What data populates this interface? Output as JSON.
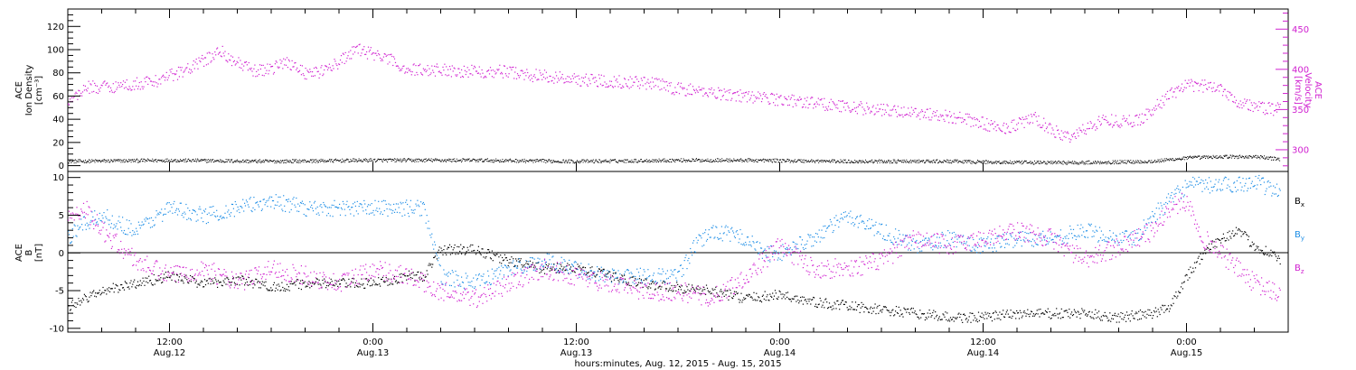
{
  "colors": {
    "black": "#000000",
    "magenta": "#d020d0",
    "blue": "#1e8ee6",
    "frame": "#000000"
  },
  "x_axis": {
    "range_hours": [
      0,
      72
    ],
    "comment_units": "hours since Aug. 12 2015 06:00",
    "title": "hours:minutes, Aug. 12, 2015 - Aug. 15, 2015",
    "ticks": [
      {
        "time": "12:00",
        "date": "Aug.12"
      },
      {
        "time": "0:00",
        "date": "Aug.13"
      },
      {
        "time": "12:00",
        "date": "Aug.13"
      },
      {
        "time": "0:00",
        "date": "Aug.14"
      },
      {
        "time": "12:00",
        "date": "Aug.14"
      },
      {
        "time": "0:00",
        "date": "Aug.15"
      }
    ]
  },
  "chart_data": [
    {
      "type": "scatter",
      "panel": "top",
      "left_axis": {
        "label_lines": [
          "ACE",
          "Ion Density",
          "[cm⁻³]"
        ],
        "ylim": [
          -5,
          135
        ],
        "ticks": [
          0,
          20,
          40,
          60,
          80,
          100,
          120
        ]
      },
      "right_axis": {
        "label_lines": [
          "ACE",
          "Velocity",
          "[km/s]"
        ],
        "ylim": [
          273,
          475
        ],
        "ticks": [
          300,
          350,
          400,
          450
        ]
      },
      "series": [
        {
          "key": "density",
          "color": "magenta_unused",
          "axis": "left",
          "anchors": [
            [
              0,
              4
            ],
            [
              6,
              5
            ],
            [
              12,
              4
            ],
            [
              18,
              5
            ],
            [
              24,
              5
            ],
            [
              30,
              4
            ],
            [
              36,
              5
            ],
            [
              40,
              5
            ],
            [
              46,
              4
            ],
            [
              52,
              4
            ],
            [
              56,
              3
            ],
            [
              60,
              3
            ],
            [
              64,
              4
            ],
            [
              66,
              7
            ],
            [
              68,
              8
            ],
            [
              70,
              8
            ],
            [
              71.5,
              6
            ]
          ]
        },
        {
          "key": "velocity",
          "axis": "right",
          "anchors": [
            [
              0,
              358
            ],
            [
              1,
              378
            ],
            [
              3,
              380
            ],
            [
              5,
              385
            ],
            [
              7,
              400
            ],
            [
              9,
              423
            ],
            [
              10,
              408
            ],
            [
              11,
              398
            ],
            [
              12,
              402
            ],
            [
              13,
              410
            ],
            [
              14,
              396
            ],
            [
              15,
              398
            ],
            [
              16,
              410
            ],
            [
              17,
              425
            ],
            [
              18,
              420
            ],
            [
              19,
              412
            ],
            [
              20,
              400
            ],
            [
              22,
              400
            ],
            [
              24,
              398
            ],
            [
              26,
              398
            ],
            [
              27,
              394
            ],
            [
              28,
              392
            ],
            [
              30,
              388
            ],
            [
              32,
              386
            ],
            [
              34,
              384
            ],
            [
              35,
              381
            ],
            [
              36,
              376
            ],
            [
              38,
              372
            ],
            [
              40,
              367
            ],
            [
              42,
              363
            ],
            [
              44,
              359
            ],
            [
              46,
              354
            ],
            [
              48,
              350
            ],
            [
              50,
              347
            ],
            [
              52,
              342
            ],
            [
              53,
              338
            ],
            [
              54,
              333
            ],
            [
              55,
              327
            ],
            [
              56,
              332
            ],
            [
              57,
              340
            ],
            [
              58,
              325
            ],
            [
              59,
              316
            ],
            [
              60,
              326
            ],
            [
              61,
              338
            ],
            [
              62,
              336
            ],
            [
              63,
              336
            ],
            [
              64,
              350
            ],
            [
              65,
              370
            ],
            [
              66,
              380
            ],
            [
              67,
              380
            ],
            [
              68,
              378
            ],
            [
              69,
              360
            ],
            [
              70,
              354
            ],
            [
              71,
              351
            ],
            [
              71.5,
              352
            ]
          ]
        }
      ]
    },
    {
      "type": "scatter",
      "panel": "bottom",
      "left_axis": {
        "label_lines": [
          "ACE",
          "B",
          "[nT]"
        ],
        "ylim": [
          -10.5,
          10.8
        ],
        "ticks": [
          -10,
          -5,
          0,
          5,
          10
        ]
      },
      "zero_line": 0,
      "series": [
        {
          "key": "Bx",
          "name": "Bx",
          "anchors": [
            [
              0,
              -7
            ],
            [
              2,
              -5
            ],
            [
              4,
              -4
            ],
            [
              6,
              -3
            ],
            [
              8,
              -4
            ],
            [
              10,
              -3.5
            ],
            [
              12,
              -4.5
            ],
            [
              14,
              -4
            ],
            [
              16,
              -4
            ],
            [
              18,
              -4
            ],
            [
              20,
              -3
            ],
            [
              21,
              -3
            ],
            [
              22,
              0.5
            ],
            [
              24,
              0.5
            ],
            [
              26,
              -1
            ],
            [
              28,
              -2
            ],
            [
              30,
              -2
            ],
            [
              32,
              -3
            ],
            [
              34,
              -4
            ],
            [
              36,
              -4.5
            ],
            [
              38,
              -5
            ],
            [
              40,
              -6
            ],
            [
              42,
              -5.5
            ],
            [
              44,
              -6.5
            ],
            [
              46,
              -7
            ],
            [
              48,
              -7.5
            ],
            [
              50,
              -8
            ],
            [
              52,
              -8.5
            ],
            [
              54,
              -8.5
            ],
            [
              56,
              -8
            ],
            [
              58,
              -8
            ],
            [
              60,
              -8
            ],
            [
              62,
              -8.5
            ],
            [
              64,
              -8
            ],
            [
              65,
              -7
            ],
            [
              66,
              -3
            ],
            [
              67,
              0
            ],
            [
              68,
              2
            ],
            [
              69,
              3
            ],
            [
              70,
              1
            ],
            [
              71,
              0
            ],
            [
              71.5,
              -1
            ]
          ]
        },
        {
          "key": "By",
          "name": "By",
          "anchors": [
            [
              0,
              2
            ],
            [
              1,
              4
            ],
            [
              2,
              5
            ],
            [
              4,
              3
            ],
            [
              6,
              6
            ],
            [
              8,
              5
            ],
            [
              10,
              6
            ],
            [
              12,
              7
            ],
            [
              14,
              6
            ],
            [
              16,
              6
            ],
            [
              18,
              6
            ],
            [
              20,
              6
            ],
            [
              21,
              6
            ],
            [
              22,
              -3
            ],
            [
              24,
              -4
            ],
            [
              26,
              -2
            ],
            [
              28,
              -1
            ],
            [
              30,
              -2
            ],
            [
              32,
              -3
            ],
            [
              34,
              -3
            ],
            [
              36,
              -3
            ],
            [
              37,
              1
            ],
            [
              38,
              3
            ],
            [
              40,
              2
            ],
            [
              41,
              0
            ],
            [
              42,
              0
            ],
            [
              44,
              2
            ],
            [
              46,
              5
            ],
            [
              48,
              3
            ],
            [
              50,
              1
            ],
            [
              52,
              2
            ],
            [
              54,
              1
            ],
            [
              56,
              2
            ],
            [
              58,
              2
            ],
            [
              60,
              3
            ],
            [
              62,
              2
            ],
            [
              63,
              2
            ],
            [
              64,
              5
            ],
            [
              65,
              7
            ],
            [
              66,
              9
            ],
            [
              68,
              9
            ],
            [
              70,
              9.5
            ],
            [
              71.5,
              8
            ]
          ]
        },
        {
          "key": "Bz",
          "name": "Bz",
          "anchors": [
            [
              0,
              5
            ],
            [
              1,
              6
            ],
            [
              2,
              3
            ],
            [
              4,
              -1
            ],
            [
              6,
              -3
            ],
            [
              8,
              -2
            ],
            [
              10,
              -4
            ],
            [
              12,
              -2
            ],
            [
              14,
              -3
            ],
            [
              16,
              -4
            ],
            [
              18,
              -2
            ],
            [
              20,
              -3
            ],
            [
              22,
              -5
            ],
            [
              24,
              -6
            ],
            [
              26,
              -4
            ],
            [
              28,
              -2
            ],
            [
              30,
              -3
            ],
            [
              32,
              -4
            ],
            [
              34,
              -5
            ],
            [
              36,
              -5
            ],
            [
              38,
              -6
            ],
            [
              40,
              -3
            ],
            [
              42,
              1
            ],
            [
              44,
              -2
            ],
            [
              46,
              -2
            ],
            [
              48,
              -1
            ],
            [
              50,
              2
            ],
            [
              52,
              1
            ],
            [
              54,
              2
            ],
            [
              56,
              3
            ],
            [
              58,
              2
            ],
            [
              60,
              -1
            ],
            [
              62,
              1
            ],
            [
              64,
              3
            ],
            [
              65,
              6
            ],
            [
              66,
              7
            ],
            [
              67,
              2
            ],
            [
              68,
              0
            ],
            [
              69,
              -2
            ],
            [
              70,
              -4
            ],
            [
              71.5,
              -5.5
            ]
          ]
        }
      ]
    }
  ]
}
